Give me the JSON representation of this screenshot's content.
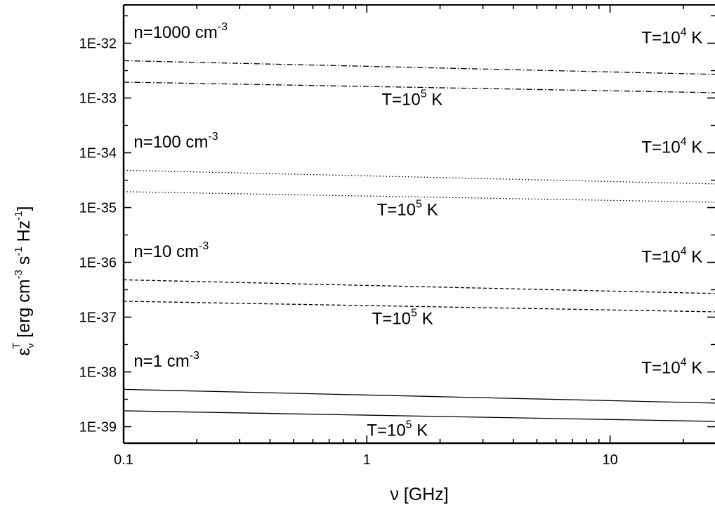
{
  "chart_data": {
    "type": "line",
    "title": "",
    "x_scale": "log",
    "y_scale": "log",
    "xlim": [
      0.1,
      27
    ],
    "ylim": [
      5e-40,
      5e-32
    ],
    "grid": false,
    "legend": "none",
    "x_ticks": [
      "0.1",
      "1",
      "10"
    ],
    "y_ticks": [
      "1E-32",
      "1E-33",
      "1E-34",
      "1E-35",
      "1E-36",
      "1E-37",
      "1E-38",
      "1E-39"
    ],
    "xlabel": {
      "main": "ν [GHz]"
    },
    "ylabel": {
      "parts": [
        "ε",
        "ν",
        "T",
        " [erg cm",
        "-3",
        " s",
        "-1",
        " Hz",
        "-1",
        "]"
      ]
    },
    "x": [
      0.1,
      27
    ],
    "series": [
      {
        "group": "n=1000",
        "temp": "1e4",
        "style": "dashdot",
        "values": [
          4.8e-33,
          2.7e-33
        ]
      },
      {
        "group": "n=1000",
        "temp": "1e5",
        "style": "dashdot",
        "values": [
          1.95e-33,
          1.25e-33
        ]
      },
      {
        "group": "n=100",
        "temp": "1e4",
        "style": "dotted",
        "values": [
          4.8e-35,
          2.7e-35
        ]
      },
      {
        "group": "n=100",
        "temp": "1e5",
        "style": "dotted",
        "values": [
          1.95e-35,
          1.25e-35
        ]
      },
      {
        "group": "n=10",
        "temp": "1e4",
        "style": "dashed",
        "values": [
          4.8e-37,
          2.7e-37
        ]
      },
      {
        "group": "n=10",
        "temp": "1e5",
        "style": "dashed",
        "values": [
          1.95e-37,
          1.25e-37
        ]
      },
      {
        "group": "n=1",
        "temp": "1e4",
        "style": "solid",
        "values": [
          4.8e-39,
          2.7e-39
        ]
      },
      {
        "group": "n=1",
        "temp": "1e5",
        "style": "solid",
        "values": [
          1.95e-39,
          1.25e-39
        ]
      }
    ],
    "annotations": [
      {
        "id": "n1000",
        "main": "n=1000 cm",
        "sup": "-3",
        "x": 0.11,
        "y": 1.25e-32,
        "anchor": "start"
      },
      {
        "id": "n100",
        "main": "n=100 cm",
        "sup": "-3",
        "x": 0.11,
        "y": 1.25e-34,
        "anchor": "start"
      },
      {
        "id": "n10",
        "main": "n=10 cm",
        "sup": "-3",
        "x": 0.11,
        "y": 1.25e-36,
        "anchor": "start"
      },
      {
        "id": "n1",
        "main": "n=1 cm",
        "sup": "-3",
        "x": 0.11,
        "y": 1.25e-38,
        "anchor": "start"
      },
      {
        "id": "t4a",
        "main": "T=10",
        "sup": "4",
        "tail": " K",
        "x": 24,
        "y": 1e-32,
        "anchor": "end"
      },
      {
        "id": "t5a",
        "main": "T=10",
        "sup": "5",
        "tail": " K",
        "x": 1.15,
        "y": 7.5e-34,
        "anchor": "start"
      },
      {
        "id": "t4b",
        "main": "T=10",
        "sup": "4",
        "tail": " K",
        "x": 24,
        "y": 1e-34,
        "anchor": "end"
      },
      {
        "id": "t5b",
        "main": "T=10",
        "sup": "5",
        "tail": " K",
        "x": 1.1,
        "y": 7.2e-36,
        "anchor": "start"
      },
      {
        "id": "t4c",
        "main": "T=10",
        "sup": "4",
        "tail": " K",
        "x": 24,
        "y": 1e-36,
        "anchor": "end"
      },
      {
        "id": "t5c",
        "main": "T=10",
        "sup": "5",
        "tail": " K",
        "x": 1.05,
        "y": 7.5e-38,
        "anchor": "start"
      },
      {
        "id": "t4d",
        "main": "T=10",
        "sup": "4",
        "tail": " K",
        "x": 24,
        "y": 9.5e-39,
        "anchor": "end"
      },
      {
        "id": "t5d",
        "main": "T=10",
        "sup": "5",
        "tail": " K",
        "x": 1.0,
        "y": 6.8e-40,
        "anchor": "start"
      }
    ]
  }
}
